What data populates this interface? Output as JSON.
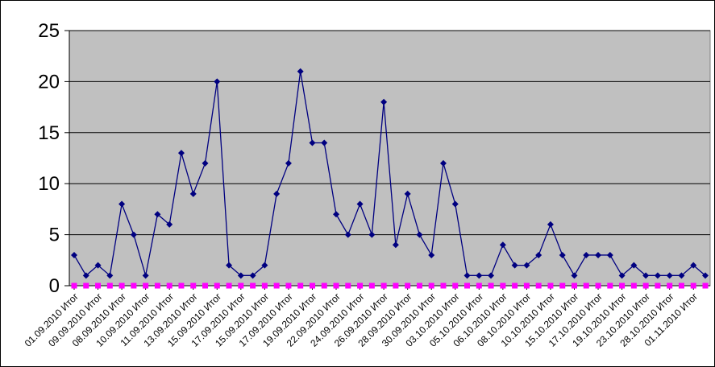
{
  "chart_data": {
    "type": "line",
    "title": "",
    "xlabel": "",
    "ylabel": "",
    "ylim": [
      0,
      25
    ],
    "yticks": [
      0,
      5,
      10,
      15,
      20,
      25
    ],
    "grid": true,
    "legend": "none",
    "colors": {
      "plot_background": "#c0c0c0",
      "gridline": "#000000",
      "series_1": "#000080",
      "series_2": "#ff00ff"
    },
    "x_labels": [
      "01.09.2010 Итог",
      "09.09.2010 Итог",
      "08.09.2010 Итог",
      "10.09.2010 Итог",
      "11.09.2010 Итог",
      "13.09.2010 Итог",
      "15.09.2010 Итог",
      "17.09.2010 Итог",
      "15.09.2010 Итог",
      "17.09.2010 Итог",
      "19.09.2010 Итог",
      "22.09.2010 Итог",
      "24.09.2010 Итог",
      "26.09.2010 Итог",
      "28.09.2010 Итог",
      "30.09.2010 Итог",
      "03.10.2010 Итог",
      "05.10.2010 Итог",
      "06.10.2010 Итог",
      "08.10.2010 Итог",
      "10.10.2010 Итог",
      "15.10.2010 Итог",
      "17.10.2010 Итог",
      "19.10.2010 Итог",
      "23.10.2010 Итог",
      "28.10.2010 Итог",
      "01.11.2010 Итог"
    ],
    "series": [
      {
        "values": [
          3,
          1,
          2,
          1,
          8,
          5,
          1,
          7,
          6,
          13,
          9,
          12,
          20,
          2,
          1,
          1,
          2,
          9,
          12,
          21,
          14,
          14,
          7,
          5,
          8,
          5,
          18,
          4,
          9,
          5,
          3,
          12,
          8,
          1,
          1,
          1,
          4,
          2,
          2,
          3,
          6,
          3,
          1,
          3,
          3,
          3,
          1,
          2,
          1,
          1,
          1,
          1,
          2,
          1
        ]
      },
      {
        "values": [
          0,
          0,
          0,
          0,
          0,
          0,
          0,
          0,
          0,
          0,
          0,
          0,
          0,
          0,
          0,
          0,
          0,
          0,
          0,
          0,
          0,
          0,
          0,
          0,
          0,
          0,
          0,
          0,
          0,
          0,
          0,
          0,
          0,
          0,
          0,
          0,
          0,
          0,
          0,
          0,
          0,
          0,
          0,
          0,
          0,
          0,
          0,
          0,
          0,
          0,
          0,
          0,
          0,
          0
        ]
      }
    ]
  }
}
